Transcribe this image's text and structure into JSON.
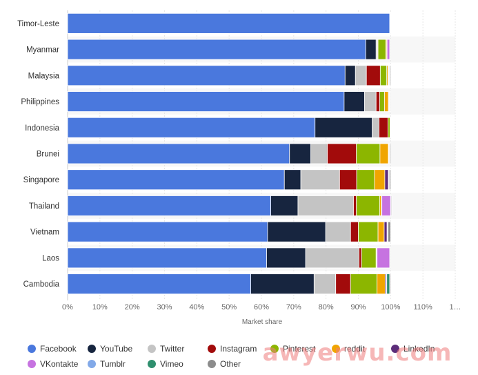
{
  "chart_data": {
    "type": "bar",
    "orientation": "horizontal",
    "stacked": true,
    "xlabel": "Market share",
    "xlim": [
      0,
      120
    ],
    "x_ticks": [
      "0%",
      "10%",
      "20%",
      "30%",
      "40%",
      "50%",
      "60%",
      "70%",
      "80%",
      "90%",
      "100%",
      "110%",
      "1…"
    ],
    "grid": true,
    "legend_position": "bottom",
    "categories": [
      "Timor-Leste",
      "Myanmar",
      "Malaysia",
      "Philippines",
      "Indonesia",
      "Brunei",
      "Singapore",
      "Thailand",
      "Vietnam",
      "Laos",
      "Cambodia"
    ],
    "series": [
      {
        "name": "Facebook",
        "color": "#4a78dd",
        "values": [
          99.7,
          92.3,
          85.9,
          85.6,
          76.6,
          68.7,
          67.1,
          62.9,
          61.9,
          61.6,
          56.7
        ]
      },
      {
        "name": "YouTube",
        "color": "#17253f",
        "values": [
          0.0,
          3.2,
          3.2,
          6.3,
          17.7,
          6.6,
          5.1,
          8.4,
          18.0,
          12.1,
          19.6
        ]
      },
      {
        "name": "Twitter",
        "color": "#c4c4c4",
        "values": [
          0.1,
          0.4,
          3.4,
          3.6,
          2.1,
          5.1,
          12.0,
          17.2,
          7.7,
          16.5,
          6.7
        ]
      },
      {
        "name": "Instagram",
        "color": "#a20b0b",
        "values": [
          0.1,
          0.2,
          4.3,
          1.1,
          2.8,
          9.0,
          5.3,
          0.9,
          2.4,
          0.8,
          4.6
        ]
      },
      {
        "name": "Pinterest",
        "color": "#8cb600",
        "values": [
          0.0,
          2.4,
          2.0,
          1.5,
          0.6,
          7.3,
          5.5,
          7.2,
          6.1,
          4.5,
          8.2
        ]
      },
      {
        "name": "reddit",
        "color": "#f0a500",
        "values": [
          0.0,
          0.3,
          0.4,
          1.2,
          0.1,
          2.6,
          3.2,
          0.5,
          1.9,
          0.2,
          2.5
        ]
      },
      {
        "name": "LinkedIn",
        "color": "#5c2d7a",
        "values": [
          0.0,
          0.1,
          0.2,
          0.2,
          0.1,
          0.1,
          1.1,
          0.2,
          0.9,
          0.1,
          0.4
        ]
      },
      {
        "name": "VKontakte",
        "color": "#c673e0",
        "values": [
          0.0,
          0.8,
          0.1,
          0.1,
          0.0,
          0.1,
          0.1,
          2.7,
          0.1,
          3.9,
          0.0
        ]
      },
      {
        "name": "Tumblr",
        "color": "#82a9e8",
        "values": [
          0.0,
          0.1,
          0.1,
          0.1,
          0.0,
          0.1,
          0.1,
          0.1,
          0.1,
          0.1,
          0.1
        ]
      },
      {
        "name": "Vimeo",
        "color": "#2f8f6e",
        "values": [
          0.0,
          0.0,
          0.1,
          0.1,
          0.0,
          0.1,
          0.1,
          0.1,
          0.1,
          0.0,
          0.9
        ]
      },
      {
        "name": "Other",
        "color": "#8c8c8c",
        "values": [
          0.1,
          0.2,
          0.3,
          0.2,
          0.0,
          0.3,
          0.4,
          0.2,
          0.8,
          0.2,
          0.3
        ]
      }
    ]
  },
  "watermark": "awyerwu.com"
}
